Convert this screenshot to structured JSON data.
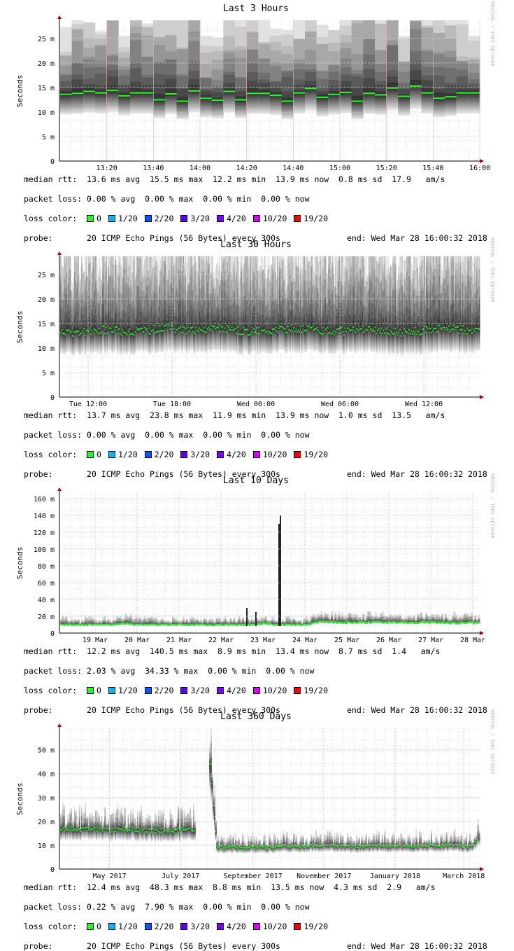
{
  "colors": {
    "0": "#20ff20",
    "1/20": "#00b8ff",
    "2/20": "#0059ff",
    "3/20": "#5e00ff",
    "4/20": "#7e00ff",
    "10/20": "#dd00ff",
    "19/20": "#ff0000"
  },
  "watermark": "RRDTOOL / TOBI OETIKER",
  "legend_labels": {
    "median": "median rtt:",
    "loss": "packet loss:",
    "color": "loss color:",
    "probe": "probe:"
  },
  "chart_data": [
    {
      "type": "area",
      "title": "Last 3 Hours",
      "ylabel": "Seconds",
      "x_range": [
        "2018-03-28T13:00",
        "2018-03-28T16:00"
      ],
      "ylim": [
        0,
        0.0287
      ],
      "yticks": [
        {
          "v": 0,
          "label": "0"
        },
        {
          "v": 5,
          "label": "5 m"
        },
        {
          "v": 10,
          "label": "10 m"
        },
        {
          "v": 15,
          "label": "15 m"
        },
        {
          "v": 20,
          "label": "20 m"
        },
        {
          "v": 25,
          "label": "25 m"
        }
      ],
      "xticks": [
        {
          "t": "2018-03-28T13:20",
          "label": "13:20"
        },
        {
          "t": "2018-03-28T13:40",
          "label": "13:40"
        },
        {
          "t": "2018-03-28T14:00",
          "label": "14:00"
        },
        {
          "t": "2018-03-28T14:20",
          "label": "14:20"
        },
        {
          "t": "2018-03-28T14:40",
          "label": "14:40"
        },
        {
          "t": "2018-03-28T15:00",
          "label": "15:00"
        },
        {
          "t": "2018-03-28T15:20",
          "label": "15:20"
        },
        {
          "t": "2018-03-28T15:40",
          "label": "15:40"
        },
        {
          "t": "2018-03-28T16:00",
          "label": "16:00"
        }
      ],
      "median_ms": [
        13.6,
        13.8,
        14.2,
        13.9,
        14.4,
        13.3,
        13.9,
        13.9,
        12.5,
        13.7,
        12.2,
        14.3,
        12.8,
        12.4,
        14.2,
        12.5,
        13.8,
        13.8,
        13.4,
        12.2,
        13.9,
        14.8,
        13.0,
        13.6,
        14.0,
        12.2,
        13.8,
        13.5,
        14.9,
        13.2,
        15.3,
        13.9,
        12.8,
        13.1,
        13.9,
        13.9
      ],
      "stats": {
        "median": "13.6 ms avg  15.5 ms max  12.2 ms min  13.9 ms now  0.8 ms sd  17.9   am/s",
        "loss": "0.00 % avg  0.00 % max  0.00 % min  0.00 % now",
        "probe": "20 ICMP Echo Pings (56 Bytes) every 300s",
        "end": "end: Wed Mar 28 16:00:32 2018"
      }
    },
    {
      "type": "area",
      "title": "Last 30 Hours",
      "ylabel": "Seconds",
      "x_range": [
        "2018-03-27T10:00",
        "2018-03-28T16:00"
      ],
      "ylim": [
        0,
        0.0287
      ],
      "yticks": [
        {
          "v": 0,
          "label": "0"
        },
        {
          "v": 5,
          "label": "5 m"
        },
        {
          "v": 10,
          "label": "10 m"
        },
        {
          "v": 15,
          "label": "15 m"
        },
        {
          "v": 20,
          "label": "20 m"
        },
        {
          "v": 25,
          "label": "25 m"
        }
      ],
      "xticks": [
        {
          "t": "2018-03-27T12:00",
          "label": "Tue 12:00"
        },
        {
          "t": "2018-03-27T18:00",
          "label": "Tue 18:00"
        },
        {
          "t": "2018-03-28T00:00",
          "label": "Wed 00:00"
        },
        {
          "t": "2018-03-28T06:00",
          "label": "Wed 06:00"
        },
        {
          "t": "2018-03-28T12:00",
          "label": "Wed 12:00"
        }
      ],
      "median_ms": [
        13.2,
        13.0,
        13.4,
        13.8,
        13.5,
        13.2,
        13.6,
        14.0,
        13.9,
        13.5,
        13.8,
        14.0,
        13.6,
        13.4,
        13.5,
        13.7,
        13.9,
        14.0,
        13.6,
        13.3,
        13.5,
        13.8,
        13.6,
        13.4,
        13.2,
        13.6,
        14.0,
        13.9,
        13.7,
        13.8
      ],
      "stats": {
        "median": "13.7 ms avg  23.8 ms max  11.9 ms min  13.9 ms now  1.0 ms sd  13.5   am/s",
        "loss": "0.00 % avg  0.00 % max  0.00 % min  0.00 % now",
        "probe": "20 ICMP Echo Pings (56 Bytes) every 300s",
        "end": "end: Wed Mar 28 16:00:32 2018"
      }
    },
    {
      "type": "area",
      "title": "Last 10 Days",
      "ylabel": "Seconds",
      "x_range": [
        "2018-03-18T16:00",
        "2018-03-28T16:00"
      ],
      "ylim": [
        0,
        0.1675
      ],
      "yticks": [
        {
          "v": 0,
          "label": "0"
        },
        {
          "v": 20,
          "label": "20 m"
        },
        {
          "v": 40,
          "label": "40 m"
        },
        {
          "v": 60,
          "label": "60 m"
        },
        {
          "v": 80,
          "label": "80 m"
        },
        {
          "v": 100,
          "label": "100 m"
        },
        {
          "v": 120,
          "label": "120 m"
        },
        {
          "v": 140,
          "label": "140 m"
        },
        {
          "v": 160,
          "label": "160 m"
        }
      ],
      "xticks": [
        {
          "t": "2018-03-19T12:00",
          "label": "19 Mar"
        },
        {
          "t": "2018-03-20T12:00",
          "label": "20 Mar"
        },
        {
          "t": "2018-03-21T12:00",
          "label": "21 Mar"
        },
        {
          "t": "2018-03-22T12:00",
          "label": "22 Mar"
        },
        {
          "t": "2018-03-23T12:00",
          "label": "23 Mar"
        },
        {
          "t": "2018-03-24T12:00",
          "label": "24 Mar"
        },
        {
          "t": "2018-03-25T12:00",
          "label": "25 Mar"
        },
        {
          "t": "2018-03-26T12:00",
          "label": "26 Mar"
        },
        {
          "t": "2018-03-27T12:00",
          "label": "27 Mar"
        },
        {
          "t": "2018-03-28T12:00",
          "label": "28 Mar"
        }
      ],
      "median_ms": [
        10,
        10,
        9.8,
        10,
        10,
        10.2,
        12,
        10,
        10,
        10,
        9.8,
        10,
        10,
        10,
        9.6,
        9.8,
        10,
        10,
        10,
        12,
        10,
        10,
        10,
        10,
        14,
        13.5,
        13,
        13,
        13,
        13,
        13,
        13,
        13,
        13,
        13,
        13,
        12.5,
        12.5,
        12.5,
        12.5
      ],
      "stats": {
        "median": "12.2 ms avg  140.5 ms max  8.9 ms min  13.4 ms now  8.7 ms sd  1.4   am/s",
        "loss": "2.03 % avg  34.33 % max  0.00 % min  0.00 % now",
        "probe": "20 ICMP Echo Pings (56 Bytes) every 300s",
        "end": "end: Wed Mar 28 16:00:32 2018"
      }
    },
    {
      "type": "area",
      "title": "Last 360 Days",
      "ylabel": "Seconds",
      "x_range": [
        "2017-04-02T16:00",
        "2018-03-28T16:00"
      ],
      "ylim": [
        0,
        0.059
      ],
      "yticks": [
        {
          "v": 0,
          "label": "0"
        },
        {
          "v": 10,
          "label": "10 m"
        },
        {
          "v": 20,
          "label": "20 m"
        },
        {
          "v": 30,
          "label": "30 m"
        },
        {
          "v": 40,
          "label": "40 m"
        },
        {
          "v": 50,
          "label": "50 m"
        }
      ],
      "xticks": [
        {
          "t": "2017-05-15T00:00",
          "label": "May 2017"
        },
        {
          "t": "2017-07-15T00:00",
          "label": "July 2017"
        },
        {
          "t": "2017-09-15T00:00",
          "label": "September 2017"
        },
        {
          "t": "2017-11-15T00:00",
          "label": "November 2017"
        },
        {
          "t": "2018-01-15T00:00",
          "label": "January 2018"
        },
        {
          "t": "2018-03-15T00:00",
          "label": "March 2018"
        }
      ],
      "median_ms": [
        17,
        17,
        16.5,
        16.5,
        16.8,
        17,
        16.5,
        16.5,
        17,
        16.5,
        16.8,
        16.2,
        16.2,
        16,
        16.2,
        16,
        16.2,
        16.5,
        16.2,
        16,
        null,
        48,
        9.5,
        9.2,
        9.2,
        9.2,
        9.2,
        9.2,
        9.2,
        9.2,
        9.4,
        9.6,
        9.6,
        9.6,
        9.6,
        9.8,
        10,
        10,
        10,
        9.6,
        9.6,
        9.6,
        9.6,
        9.8,
        9.8,
        9.8,
        9.8,
        9.8,
        9.8,
        9.8,
        9.8,
        9.8,
        10,
        10,
        10,
        10,
        10,
        9.6,
        9.6,
        14
      ],
      "stats": {
        "median": "12.4 ms avg  48.3 ms max  8.8 ms min  13.5 ms now  4.3 ms sd  2.9   am/s",
        "loss": "0.22 % avg  7.90 % max  0.00 % min  0.00 % now",
        "probe": "20 ICMP Echo Pings (56 Bytes) every 300s",
        "end": "end: Wed Mar 28 16:00:32 2018"
      }
    }
  ]
}
